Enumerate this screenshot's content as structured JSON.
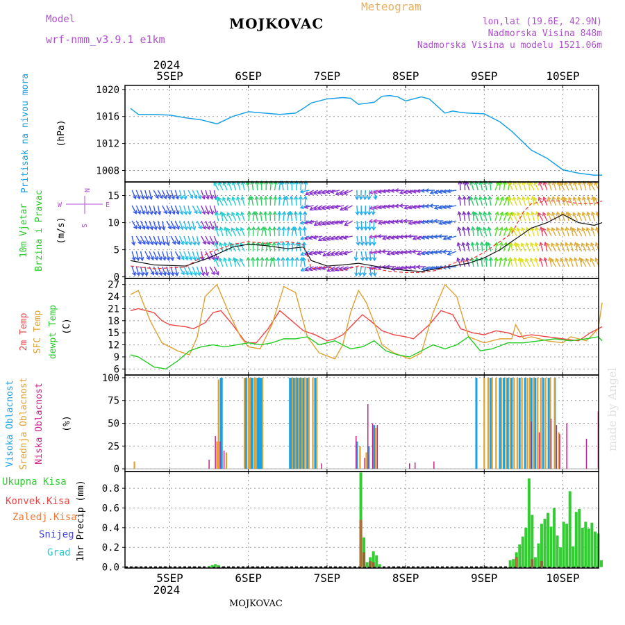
{
  "header": {
    "model_label": "Model",
    "model_value": "wrf-nmm_v3.9.1  e1km",
    "title": "MOJKOVAC",
    "subtitle": "Meteogram",
    "lonlat": "lon,lat (19.6E, 42.9N)",
    "altitude": "Nadmorska Visina 848m",
    "model_altitude": "Nadmorska Visina u modelu 1521.06m",
    "footer": "MOJKOVAC",
    "credit": "made by Angel"
  },
  "colors": {
    "pressure": "#1aa0e6",
    "temp2m": "#ee4444",
    "sfctemp": "#e0a030",
    "dewpt": "#22cc22",
    "high_cloud": "#1aa0e6",
    "mid_cloud": "#e0a030",
    "low_cloud": "#cc2288",
    "total_precip": "#33cc33",
    "conv_precip": "#ee4444",
    "frozen_precip": "#ee7733",
    "snow": "#4444dd",
    "graupel": "#22cccc",
    "purple_text": "#b050d0",
    "orange_text": "#e8b060"
  },
  "chart_data": [
    {
      "type": "line",
      "panel": "pressure",
      "ylabel_left": "Pritisak na nivou mora",
      "unit": "(hPa)",
      "x_top_year": "2024",
      "x_ticks": [
        "5SEP",
        "6SEP",
        "7SEP",
        "8SEP",
        "9SEP",
        "10SEP"
      ],
      "y_ticks": [
        1008,
        1012,
        1016,
        1020
      ],
      "ylim": [
        1006.3,
        1020.6
      ],
      "grid": true,
      "series": [
        {
          "x": [
            4.5,
            4.6,
            4.8,
            5.0,
            5.2,
            5.4,
            5.6,
            5.8,
            6.0,
            6.2,
            6.4,
            6.6,
            6.7,
            6.8,
            7.0,
            7.2,
            7.3,
            7.4,
            7.6,
            7.7,
            7.8,
            7.9,
            8.0,
            8.2,
            8.3,
            8.5,
            8.6,
            8.7,
            8.8,
            9.0,
            9.2,
            9.35,
            9.6,
            9.8,
            10.0,
            10.2,
            10.4,
            10.5
          ],
          "values": [
            1017.2,
            1016.3,
            1016.3,
            1016.2,
            1015.8,
            1015.5,
            1014.9,
            1016.0,
            1016.7,
            1016.5,
            1016.3,
            1016.5,
            1017.2,
            1018.0,
            1018.6,
            1018.8,
            1018.7,
            1017.8,
            1018.1,
            1019.0,
            1019.1,
            1018.9,
            1018.3,
            1018.9,
            1018.6,
            1016.5,
            1016.8,
            1016.6,
            1016.5,
            1016.4,
            1015.2,
            1013.8,
            1011.0,
            1009.8,
            1008.1,
            1007.6,
            1007.3,
            1007.3
          ]
        }
      ]
    },
    {
      "type": "line",
      "panel": "wind",
      "ylabel_left": [
        "10m Vjetar",
        "Brzina i Pravac"
      ],
      "unit": "(m/s)",
      "compass": [
        "N",
        "W",
        "E",
        "S"
      ],
      "y_ticks": [
        0,
        5,
        10,
        15
      ],
      "ylim": [
        -0.3,
        17.5
      ],
      "grid": true,
      "series": [
        {
          "kind": "speed",
          "x": [
            4.5,
            4.8,
            5.2,
            5.5,
            5.8,
            6.0,
            6.2,
            6.5,
            6.7,
            6.8,
            7.0,
            7.2,
            7.4,
            7.6,
            7.8,
            8.0,
            8.2,
            8.4,
            8.6,
            8.8,
            9.0,
            9.2,
            9.35,
            9.5,
            9.6,
            9.8,
            10.0,
            10.2,
            10.4,
            10.5
          ],
          "values": [
            3.0,
            2.2,
            2.0,
            3.5,
            5.5,
            6.0,
            5.8,
            5.2,
            5.5,
            3.0,
            2.0,
            2.2,
            2.5,
            2.0,
            1.5,
            1.2,
            1.0,
            1.5,
            2.0,
            2.5,
            3.5,
            5.0,
            6.5,
            8.0,
            9.0,
            10.0,
            11.5,
            10.0,
            9.5,
            10.0
          ]
        },
        {
          "kind": "gust",
          "x": [
            4.5,
            4.8,
            5.2,
            5.5,
            5.8,
            6.0,
            6.2,
            6.5,
            6.7,
            6.8,
            7.0,
            7.2,
            7.4,
            7.6,
            7.8,
            8.0,
            8.2,
            8.4,
            8.6,
            8.8,
            9.0,
            9.2,
            9.35,
            9.5,
            9.6,
            9.8,
            10.0,
            10.2,
            10.4,
            10.5
          ],
          "values": [
            2.0,
            1.5,
            1.8,
            4.5,
            6.0,
            6.5,
            6.2,
            6.5,
            6.0,
            1.5,
            1.8,
            1.2,
            2.0,
            1.5,
            1.0,
            0.8,
            0.8,
            1.2,
            2.5,
            3.0,
            4.5,
            6.5,
            8.0,
            12.0,
            13.5,
            14.0,
            14.0,
            13.5,
            13.5,
            14.0
          ]
        }
      ]
    },
    {
      "type": "line",
      "panel": "temperature",
      "ylabel_left": [
        "2m Temp",
        "SFC Temp",
        "dewpt Temp"
      ],
      "unit": "(C)",
      "y_ticks": [
        6,
        9,
        12,
        15,
        18,
        21,
        24,
        27
      ],
      "ylim": [
        4.5,
        28.5
      ],
      "grid": true,
      "series": [
        {
          "name": "2m Temp",
          "x": [
            4.5,
            4.6,
            4.8,
            4.9,
            5.0,
            5.2,
            5.3,
            5.45,
            5.55,
            5.65,
            5.8,
            5.95,
            6.0,
            6.1,
            6.25,
            6.4,
            6.55,
            6.7,
            6.85,
            7.0,
            7.1,
            7.2,
            7.35,
            7.45,
            7.55,
            7.7,
            7.85,
            8.0,
            8.1,
            8.3,
            8.45,
            8.6,
            8.7,
            8.85,
            9.0,
            9.15,
            9.3,
            9.45,
            9.6,
            9.8,
            10.0,
            10.2,
            10.35,
            10.5
          ],
          "values": [
            20.5,
            21.0,
            20.0,
            18.0,
            17.0,
            16.5,
            16.0,
            17.5,
            20.0,
            20.5,
            17.0,
            13.0,
            12.5,
            12.5,
            16.0,
            20.5,
            18.0,
            15.5,
            14.5,
            13.0,
            13.5,
            14.5,
            17.5,
            19.5,
            18.0,
            15.5,
            14.5,
            14.0,
            13.5,
            17.0,
            20.5,
            19.5,
            16.0,
            15.0,
            14.5,
            15.5,
            15.0,
            14.0,
            14.5,
            14.0,
            13.5,
            13.0,
            15.0,
            16.5
          ]
        },
        {
          "name": "SFC Temp",
          "x": [
            4.5,
            4.6,
            4.75,
            4.9,
            5.1,
            5.25,
            5.35,
            5.45,
            5.6,
            5.75,
            5.9,
            6.0,
            6.15,
            6.3,
            6.45,
            6.6,
            6.75,
            6.9,
            7.1,
            7.2,
            7.3,
            7.4,
            7.5,
            7.6,
            7.7,
            7.85,
            8.05,
            8.2,
            8.35,
            8.5,
            8.65,
            8.8,
            9.0,
            9.2,
            9.35,
            9.4,
            9.5,
            9.6,
            9.8,
            10.0,
            10.1,
            10.3,
            10.45,
            10.5
          ],
          "values": [
            24.5,
            25.5,
            18.0,
            12.5,
            10.5,
            9.5,
            14.0,
            24.0,
            27.0,
            20.0,
            14.0,
            11.5,
            11.0,
            17.0,
            26.5,
            25.0,
            14.0,
            10.0,
            8.5,
            12.0,
            20.0,
            25.5,
            22.5,
            17.5,
            12.0,
            10.0,
            8.5,
            10.0,
            20.0,
            27.0,
            24.0,
            14.0,
            12.5,
            13.5,
            13.5,
            17.0,
            13.5,
            14.0,
            13.0,
            12.5,
            14.0,
            13.0,
            16.0,
            22.5
          ]
        },
        {
          "name": "dewpt Temp",
          "x": [
            4.5,
            4.6,
            4.8,
            4.95,
            5.1,
            5.25,
            5.4,
            5.55,
            5.7,
            5.85,
            6.0,
            6.15,
            6.3,
            6.45,
            6.6,
            6.75,
            6.9,
            7.1,
            7.3,
            7.45,
            7.6,
            7.75,
            7.9,
            8.05,
            8.2,
            8.35,
            8.5,
            8.65,
            8.8,
            8.95,
            9.1,
            9.3,
            9.5,
            9.7,
            9.9,
            10.1,
            10.3,
            10.45,
            10.5
          ],
          "values": [
            9.5,
            9.0,
            6.5,
            6.0,
            8.0,
            10.5,
            11.5,
            12.0,
            11.5,
            12.0,
            12.5,
            12.0,
            12.5,
            13.5,
            13.5,
            14.0,
            12.0,
            13.0,
            11.0,
            11.5,
            13.0,
            10.5,
            9.5,
            9.0,
            10.5,
            12.0,
            11.0,
            12.0,
            14.0,
            10.5,
            11.0,
            12.5,
            12.5,
            13.0,
            13.5,
            13.0,
            13.5,
            14.0,
            13.0
          ]
        }
      ]
    },
    {
      "type": "bar",
      "panel": "cloudiness",
      "ylabel_left": [
        "Visoka Oblacnost",
        "Srednja Oblacnost",
        "Niska Oblacnost"
      ],
      "unit": "(%)",
      "y_ticks": [
        0,
        25,
        50,
        75,
        100
      ],
      "ylim": [
        -3,
        103
      ],
      "grid": true,
      "series": [
        {
          "name": "Visoka Oblacnost",
          "x": [
            5.65,
            5.66,
            5.97,
            6.03,
            6.05,
            6.12,
            6.14,
            6.16,
            6.53,
            6.55,
            6.57,
            6.59,
            6.61,
            6.63,
            6.65,
            6.67,
            6.7,
            6.75,
            6.85,
            7.38,
            7.53,
            7.6,
            8.9,
            9.08,
            9.2,
            9.25,
            9.3,
            9.35,
            9.45,
            9.52,
            9.6,
            9.65,
            9.75,
            9.82,
            9.9
          ],
          "values": [
            100,
            100,
            100,
            100,
            100,
            100,
            100,
            100,
            100,
            100,
            100,
            100,
            100,
            100,
            100,
            100,
            100,
            100,
            100,
            30,
            25,
            48,
            100,
            100,
            100,
            100,
            100,
            100,
            100,
            100,
            100,
            100,
            100,
            100,
            100
          ]
        },
        {
          "name": "Srednja Oblacnost",
          "x": [
            4.55,
            5.6,
            5.62,
            5.72,
            5.95,
            6.0,
            6.02,
            6.08,
            6.1,
            6.18,
            6.56,
            6.6,
            6.64,
            6.68,
            6.72,
            6.77,
            6.82,
            6.87,
            7.42,
            7.5,
            7.62,
            9.0,
            9.05,
            9.1,
            9.15,
            9.22,
            9.28,
            9.33,
            9.38,
            9.42,
            9.48,
            9.55,
            9.58,
            9.63,
            9.68,
            9.72,
            9.78,
            9.84,
            9.9,
            9.95
          ],
          "values": [
            8,
            30,
            98,
            18,
            100,
            100,
            100,
            100,
            100,
            100,
            100,
            100,
            100,
            100,
            100,
            100,
            100,
            100,
            25,
            18,
            45,
            100,
            100,
            100,
            100,
            100,
            100,
            100,
            100,
            100,
            100,
            100,
            100,
            100,
            100,
            100,
            100,
            100,
            100,
            40
          ]
        },
        {
          "name": "Niska Oblacnost",
          "x": [
            5.5,
            5.58,
            5.64,
            5.69,
            6.93,
            7.37,
            7.48,
            7.52,
            7.58,
            7.64,
            8.05,
            8.12,
            8.36,
            9.6,
            9.7,
            9.85,
            9.92,
            9.96,
            10.05,
            10.3,
            10.45
          ],
          "values": [
            10,
            36,
            30,
            20,
            6,
            36,
            12,
            71,
            50,
            48,
            6,
            7,
            8,
            52,
            40,
            55,
            48,
            38,
            50,
            33,
            63
          ]
        }
      ]
    },
    {
      "type": "bar",
      "panel": "precipitation",
      "ylabel_left": [
        "Ukupna Kisa",
        "Konvek.Kisa",
        "Zaledj.Kisa",
        "Snijeg",
        "Grad"
      ],
      "ylabel_right": "1hr Precip (mm)",
      "unit": "(mm)",
      "y_ticks": [
        0.0,
        0.2,
        0.4,
        0.6,
        0.8
      ],
      "ylim": [
        -0.01,
        0.97
      ],
      "grid": true,
      "x_bottom_year": "2024",
      "series": [
        {
          "name": "Ukupna Kisa",
          "x": [
            5.5,
            5.54,
            5.58,
            5.62,
            7.43,
            7.47,
            7.51,
            7.55,
            7.59,
            7.63,
            7.67,
            9.33,
            9.37,
            9.41,
            9.45,
            9.49,
            9.53,
            9.57,
            9.61,
            9.65,
            9.69,
            9.73,
            9.77,
            9.81,
            9.85,
            9.89,
            9.93,
            9.97,
            10.01,
            10.05,
            10.09,
            10.13,
            10.17,
            10.21,
            10.25,
            10.29,
            10.33,
            10.37,
            10.41,
            10.45,
            10.49
          ],
          "values": [
            0.01,
            0.02,
            0.03,
            0.02,
            0.96,
            0.3,
            0.05,
            0.1,
            0.16,
            0.12,
            0.03,
            0.07,
            0.08,
            0.15,
            0.23,
            0.31,
            0.4,
            0.9,
            0.53,
            0.1,
            0.24,
            0.44,
            0.49,
            0.55,
            0.41,
            0.6,
            0.32,
            0.2,
            0.46,
            0.44,
            0.77,
            0.21,
            0.56,
            0.59,
            0.4,
            0.46,
            0.39,
            0.45,
            0.36,
            0.34,
            0.07
          ]
        },
        {
          "name": "Konvek.Kisa",
          "x": [
            7.43,
            7.47,
            7.55,
            7.59,
            9.41,
            9.61,
            9.73
          ],
          "values": [
            0.48,
            0.15,
            0.06,
            0.05,
            0.1,
            0.08,
            0.06
          ]
        },
        {
          "name": "Zaledj.Kisa",
          "x": [
            7.43,
            9.41
          ],
          "values": [
            0.48,
            0.09
          ]
        },
        {
          "name": "Snijeg",
          "x": [],
          "values": []
        },
        {
          "name": "Grad",
          "x": [],
          "values": []
        }
      ]
    }
  ]
}
